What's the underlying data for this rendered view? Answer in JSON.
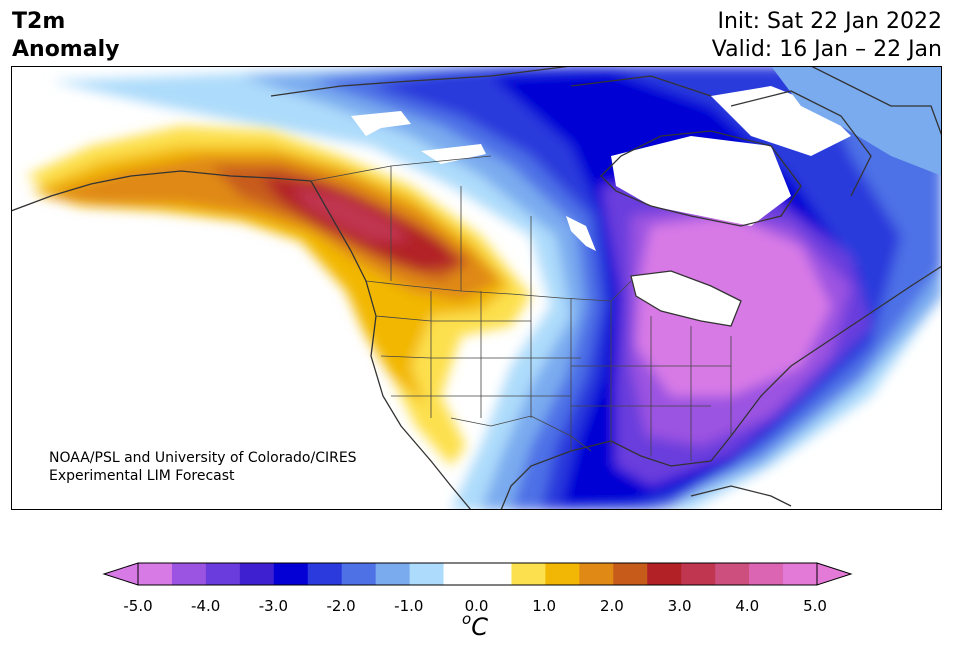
{
  "header": {
    "title_line1": "T2m",
    "title_line2": "Anomaly",
    "init": "Init: Sat 22 Jan 2022",
    "valid": "Valid: 16 Jan – 22 Jan"
  },
  "credit": {
    "line1": "NOAA/PSL and University of Colorado/CIRES",
    "line2": "Experimental LIM Forecast"
  },
  "colorbar": {
    "ticks": [
      "-5.0",
      "-4.0",
      "-3.0",
      "-2.0",
      "-1.0",
      "0.0",
      "1.0",
      "2.0",
      "3.0",
      "4.0",
      "5.0"
    ],
    "unit_sup": "o",
    "unit": "C",
    "under_color": "#d87ae6",
    "over_color": "#e37ad8",
    "bin_colors": [
      "#d87ae6",
      "#9b53e1",
      "#6a3cdd",
      "#3f20d0",
      "#0400d5",
      "#2a3adc",
      "#4e71e6",
      "#7aabef",
      "#addbfb",
      "#ffffff",
      "#ffffff",
      "#fde04d",
      "#f2b705",
      "#e08915",
      "#c75b1a",
      "#b22125",
      "#c03550",
      "#cc4f7d",
      "#dc65b3",
      "#e37ad8"
    ]
  },
  "map": {
    "region": "North America",
    "projection": "polar-stereographic",
    "land_outline_color": "#333333",
    "warm_anomaly_center": "western Canada / Alaska panhandle",
    "cold_anomaly_center": "central and eastern United States, Hudson Bay"
  }
}
